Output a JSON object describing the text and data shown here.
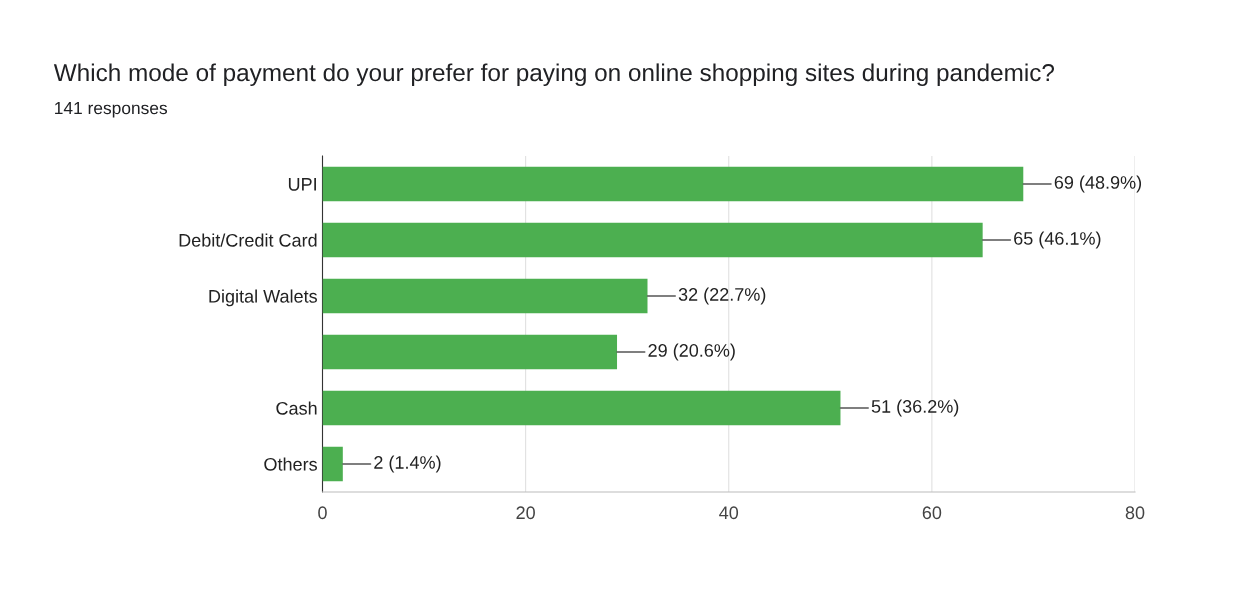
{
  "chart_data": {
    "type": "bar",
    "orientation": "horizontal",
    "title": "Which mode of payment do your prefer for paying on online shopping sites during pandemic?",
    "subtitle": "141 responses",
    "categories": [
      "UPI",
      "Debit/Credit Card",
      "Digital Walets",
      null,
      "Cash",
      "Others"
    ],
    "values": [
      69,
      65,
      32,
      29,
      51,
      2
    ],
    "value_labels": [
      "69 (48.9%)",
      "65 (46.1%)",
      "32 (22.7%)",
      "29 (20.6%)",
      "51 (36.2%)",
      "2 (1.4%)"
    ],
    "color": "#4caf50",
    "xlim": [
      0,
      80
    ],
    "xticks": [
      0,
      20,
      40,
      60,
      80
    ],
    "grid": "x"
  }
}
